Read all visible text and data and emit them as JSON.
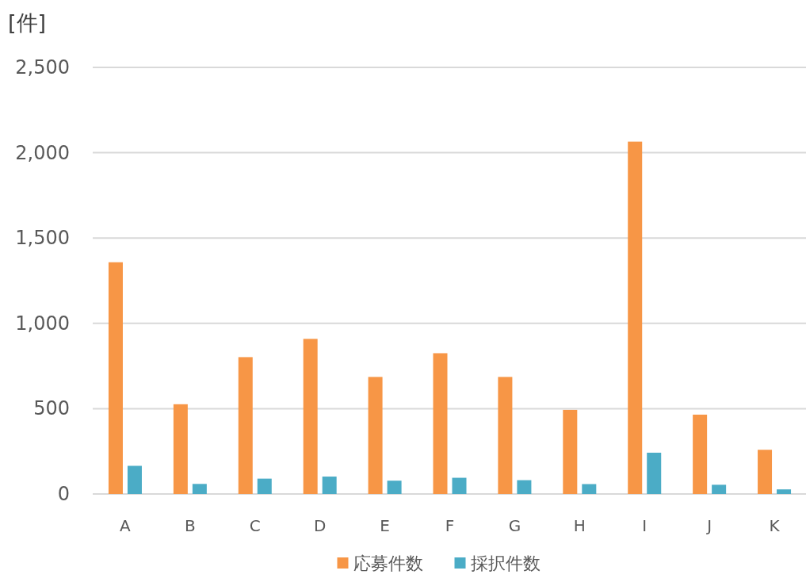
{
  "chart_data": {
    "type": "bar",
    "ylabel": "[件]",
    "categories": [
      "A",
      "B",
      "C",
      "D",
      "E",
      "F",
      "G",
      "H",
      "I",
      "J",
      "K"
    ],
    "series": [
      {
        "name": "応募件数",
        "color": "#f79646",
        "values": [
          1358,
          526,
          802,
          909,
          686,
          825,
          686,
          493,
          2065,
          465,
          259
        ]
      },
      {
        "name": "採択件数",
        "color": "#4bacc6",
        "values": [
          165,
          59,
          90,
          102,
          78,
          95,
          81,
          58,
          242,
          54,
          27
        ]
      }
    ],
    "ylim": [
      0,
      2500
    ],
    "yticks": [
      {
        "value": 0,
        "label": "0"
      },
      {
        "value": 500,
        "label": "500"
      },
      {
        "value": 1000,
        "label": "1,000"
      },
      {
        "value": 1500,
        "label": "1,500"
      },
      {
        "value": 2000,
        "label": "2,000"
      },
      {
        "value": 2500,
        "label": "2,500"
      }
    ],
    "grid": "y",
    "legend": "bottom"
  }
}
